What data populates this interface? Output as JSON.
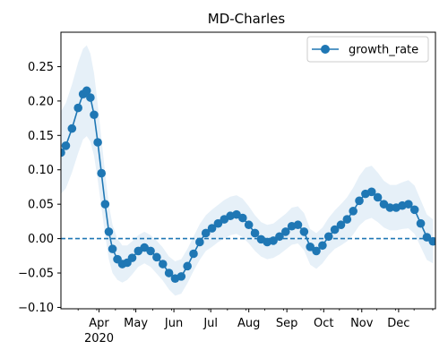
{
  "chart_data": {
    "type": "line",
    "title": "MD-Charles",
    "xlabel": "",
    "ylabel": "",
    "x_start": "2020-03-01",
    "x_end": "2020-12-31",
    "xlim": [
      "2020-03-01",
      "2020-12-31"
    ],
    "ylim": [
      -0.102,
      0.3
    ],
    "y_ticks": [
      -0.1,
      -0.05,
      0.0,
      0.05,
      0.1,
      0.15,
      0.2,
      0.25
    ],
    "y_tick_labels": [
      "−0.10",
      "−0.05",
      "0.00",
      "0.05",
      "0.10",
      "0.15",
      "0.20",
      "0.25"
    ],
    "x_ticks": [
      {
        "date": "2020-04-01",
        "label": "Apr",
        "sublabel": "2020"
      },
      {
        "date": "2020-05-01",
        "label": "May",
        "sublabel": ""
      },
      {
        "date": "2020-06-01",
        "label": "Jun",
        "sublabel": ""
      },
      {
        "date": "2020-07-01",
        "label": "Jul",
        "sublabel": ""
      },
      {
        "date": "2020-08-01",
        "label": "Aug",
        "sublabel": ""
      },
      {
        "date": "2020-09-01",
        "label": "Sep",
        "sublabel": ""
      },
      {
        "date": "2020-10-01",
        "label": "Oct",
        "sublabel": ""
      },
      {
        "date": "2020-11-01",
        "label": "Nov",
        "sublabel": ""
      },
      {
        "date": "2020-12-01",
        "label": "Dec",
        "sublabel": ""
      }
    ],
    "legend": {
      "position": "upper right",
      "entries": [
        "growth_rate"
      ]
    },
    "reference_line": {
      "y": 0.0,
      "style": "dashed"
    },
    "colors": {
      "line": "#1f77b4",
      "band": "#d6e6f4"
    },
    "series": [
      {
        "name": "growth_rate",
        "points": [
          [
            "2020-03-01",
            0.125
          ],
          [
            "2020-03-05",
            0.135
          ],
          [
            "2020-03-10",
            0.16
          ],
          [
            "2020-03-15",
            0.19
          ],
          [
            "2020-03-19",
            0.21
          ],
          [
            "2020-03-22",
            0.215
          ],
          [
            "2020-03-25",
            0.205
          ],
          [
            "2020-03-28",
            0.18
          ],
          [
            "2020-03-31",
            0.14
          ],
          [
            "2020-04-03",
            0.095
          ],
          [
            "2020-04-06",
            0.05
          ],
          [
            "2020-04-09",
            0.01
          ],
          [
            "2020-04-12",
            -0.015
          ],
          [
            "2020-04-16",
            -0.03
          ],
          [
            "2020-04-20",
            -0.037
          ],
          [
            "2020-04-24",
            -0.035
          ],
          [
            "2020-04-28",
            -0.028
          ],
          [
            "2020-05-03",
            -0.018
          ],
          [
            "2020-05-08",
            -0.013
          ],
          [
            "2020-05-13",
            -0.018
          ],
          [
            "2020-05-18",
            -0.027
          ],
          [
            "2020-05-23",
            -0.037
          ],
          [
            "2020-05-28",
            -0.05
          ],
          [
            "2020-06-02",
            -0.058
          ],
          [
            "2020-06-07",
            -0.055
          ],
          [
            "2020-06-12",
            -0.04
          ],
          [
            "2020-06-17",
            -0.022
          ],
          [
            "2020-06-22",
            -0.005
          ],
          [
            "2020-06-27",
            0.008
          ],
          [
            "2020-07-02",
            0.015
          ],
          [
            "2020-07-07",
            0.022
          ],
          [
            "2020-07-12",
            0.028
          ],
          [
            "2020-07-17",
            0.033
          ],
          [
            "2020-07-22",
            0.035
          ],
          [
            "2020-07-27",
            0.03
          ],
          [
            "2020-08-01",
            0.02
          ],
          [
            "2020-08-06",
            0.008
          ],
          [
            "2020-08-11",
            -0.001
          ],
          [
            "2020-08-16",
            -0.005
          ],
          [
            "2020-08-21",
            -0.003
          ],
          [
            "2020-08-26",
            0.003
          ],
          [
            "2020-08-31",
            0.01
          ],
          [
            "2020-09-05",
            0.018
          ],
          [
            "2020-09-10",
            0.02
          ],
          [
            "2020-09-15",
            0.01
          ],
          [
            "2020-09-20",
            -0.012
          ],
          [
            "2020-09-25",
            -0.018
          ],
          [
            "2020-09-30",
            -0.01
          ],
          [
            "2020-10-05",
            0.003
          ],
          [
            "2020-10-10",
            0.013
          ],
          [
            "2020-10-15",
            0.02
          ],
          [
            "2020-10-20",
            0.028
          ],
          [
            "2020-10-25",
            0.04
          ],
          [
            "2020-10-30",
            0.055
          ],
          [
            "2020-11-04",
            0.065
          ],
          [
            "2020-11-09",
            0.068
          ],
          [
            "2020-11-14",
            0.06
          ],
          [
            "2020-11-19",
            0.05
          ],
          [
            "2020-11-24",
            0.045
          ],
          [
            "2020-11-29",
            0.045
          ],
          [
            "2020-12-04",
            0.048
          ],
          [
            "2020-12-09",
            0.05
          ],
          [
            "2020-12-14",
            0.042
          ],
          [
            "2020-12-19",
            0.022
          ],
          [
            "2020-12-24",
            0.002
          ],
          [
            "2020-12-29",
            -0.004
          ]
        ],
        "band_halfwidth": [
          0.06,
          0.062,
          0.064,
          0.066,
          0.066,
          0.066,
          0.064,
          0.06,
          0.055,
          0.05,
          0.045,
          0.04,
          0.035,
          0.03,
          0.027,
          0.025,
          0.024,
          0.023,
          0.023,
          0.023,
          0.024,
          0.024,
          0.024,
          0.025,
          0.025,
          0.025,
          0.025,
          0.026,
          0.026,
          0.027,
          0.027,
          0.028,
          0.028,
          0.028,
          0.028,
          0.027,
          0.026,
          0.025,
          0.025,
          0.025,
          0.026,
          0.026,
          0.027,
          0.027,
          0.027,
          0.026,
          0.026,
          0.026,
          0.027,
          0.028,
          0.03,
          0.032,
          0.034,
          0.036,
          0.038,
          0.038,
          0.036,
          0.034,
          0.033,
          0.033,
          0.034,
          0.035,
          0.035,
          0.034,
          0.033,
          0.032
        ]
      }
    ]
  }
}
